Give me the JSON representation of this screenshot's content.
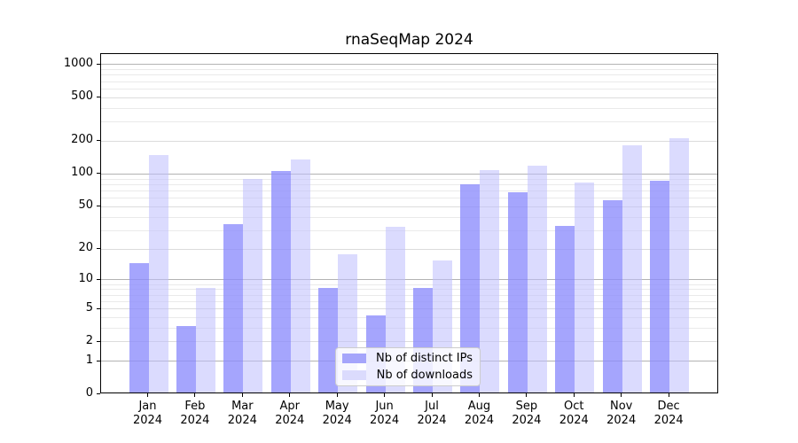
{
  "chart_data": {
    "type": "bar",
    "title": "rnaSeqMap 2024",
    "categories": [
      "Jan",
      "Feb",
      "Mar",
      "Apr",
      "May",
      "Jun",
      "Jul",
      "Aug",
      "Sep",
      "Oct",
      "Nov",
      "Dec"
    ],
    "year_label": "2024",
    "series": [
      {
        "name": "Nb of distinct IPs",
        "color": "rgba(140,140,252,0.78)",
        "legend_color": "#a5a5fb",
        "values": [
          14,
          3,
          33,
          103,
          8,
          4,
          8,
          78,
          65,
          32,
          55,
          84
        ]
      },
      {
        "name": "Nb of downloads",
        "color": "rgba(190,190,253,0.55)",
        "legend_color": "#dbdbfd",
        "values": [
          145,
          8,
          87,
          130,
          17,
          31,
          15,
          105,
          115,
          81,
          177,
          207
        ]
      }
    ],
    "yscale": "log1p",
    "yticks": [
      0,
      1,
      2,
      5,
      10,
      20,
      50,
      100,
      200,
      500,
      1000
    ],
    "ylim": [
      0,
      1250
    ],
    "grid": true,
    "legend_position": "lower-center",
    "gridlines": {
      "major": {
        "values": [
          1,
          10,
          100,
          1000
        ],
        "color": "#b3b3b3"
      },
      "mid": {
        "values": [
          2,
          5,
          20,
          50,
          200,
          500
        ],
        "color": "#dcdcdc"
      },
      "minor": {
        "values": [
          3,
          4,
          6,
          7,
          8,
          9,
          30,
          40,
          60,
          70,
          80,
          90,
          300,
          400,
          600,
          700,
          800,
          900
        ],
        "color": "#eaeaea"
      }
    },
    "colors": {
      "axis": "#000000",
      "background": "#ffffff",
      "tick_text": "#000000"
    }
  }
}
